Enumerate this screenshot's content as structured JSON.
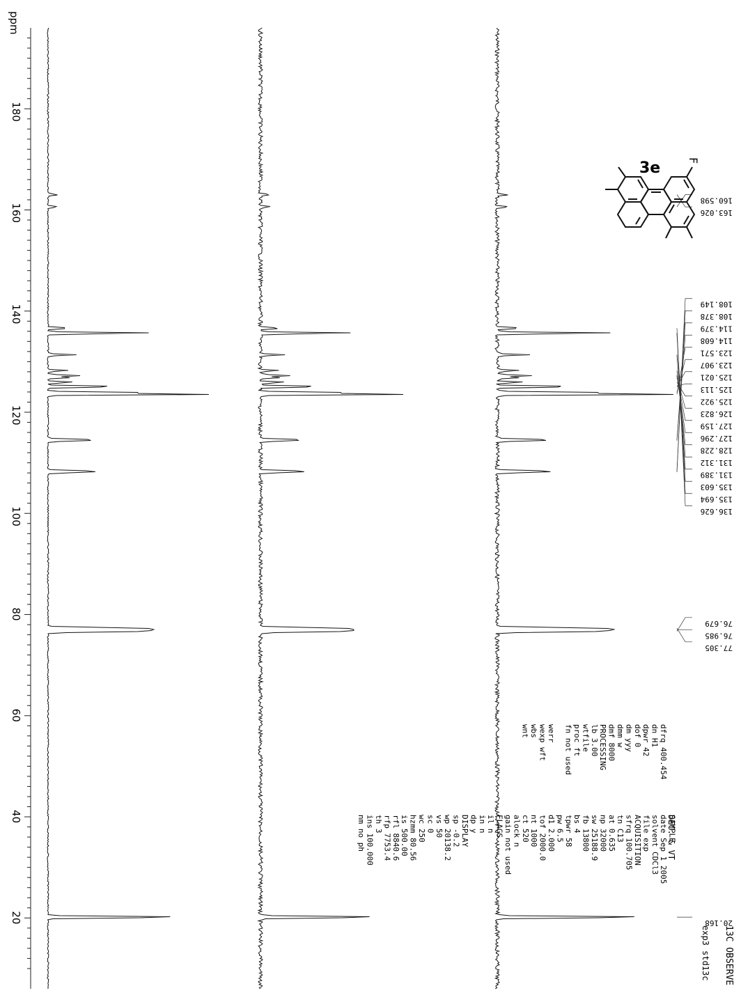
{
  "chart_data": {
    "type": "line",
    "title": "13C OBSERVE",
    "xlabel": "ppm",
    "ylabel": "",
    "xlim": [
      196,
      6
    ],
    "ticks": [
      "20",
      "40",
      "60",
      "80",
      "100",
      "120",
      "140",
      "160",
      "180"
    ],
    "tick_values": [
      20,
      40,
      60,
      80,
      100,
      120,
      140,
      160,
      180
    ],
    "grid": false,
    "panels": [
      {
        "name": "",
        "scale": 1.0
      },
      {
        "name": "",
        "scale": 3.2
      },
      {
        "name": "",
        "scale": 0.9
      }
    ],
    "peaks": [
      {
        "ppm": 20.168,
        "height": 1.0,
        "width": 0.18
      },
      {
        "ppm": 76.679,
        "height": 0.6,
        "width": 0.2
      },
      {
        "ppm": 76.985,
        "height": 0.62,
        "width": 0.2
      },
      {
        "ppm": 77.305,
        "height": 0.6,
        "width": 0.2
      },
      {
        "ppm": 108.149,
        "height": 0.28,
        "width": 0.15
      },
      {
        "ppm": 108.378,
        "height": 0.28,
        "width": 0.15
      },
      {
        "ppm": 114.379,
        "height": 0.25,
        "width": 0.15
      },
      {
        "ppm": 114.608,
        "height": 0.25,
        "width": 0.15
      },
      {
        "ppm": 123.571,
        "height": 1.25,
        "width": 0.15
      },
      {
        "ppm": 123.907,
        "height": 0.6,
        "width": 0.15
      },
      {
        "ppm": 125.021,
        "height": 0.3,
        "width": 0.15
      },
      {
        "ppm": 125.113,
        "height": 0.3,
        "width": 0.15
      },
      {
        "ppm": 125.922,
        "height": 0.2,
        "width": 0.15
      },
      {
        "ppm": 126.823,
        "height": 0.14,
        "width": 0.15
      },
      {
        "ppm": 127.159,
        "height": 0.14,
        "width": 0.15
      },
      {
        "ppm": 127.296,
        "height": 0.12,
        "width": 0.15
      },
      {
        "ppm": 128.228,
        "height": 0.14,
        "width": 0.15
      },
      {
        "ppm": 131.312,
        "height": 0.1,
        "width": 0.15
      },
      {
        "ppm": 131.389,
        "height": 0.1,
        "width": 0.15
      },
      {
        "ppm": 135.603,
        "height": 0.4,
        "width": 0.15
      },
      {
        "ppm": 135.694,
        "height": 0.4,
        "width": 0.15
      },
      {
        "ppm": 136.626,
        "height": 0.18,
        "width": 0.15
      },
      {
        "ppm": 160.598,
        "height": 0.08,
        "width": 0.15
      },
      {
        "ppm": 163.026,
        "height": 0.08,
        "width": 0.15
      }
    ],
    "peak_labels": [
      "20.168",
      "76.679",
      "76.985",
      "77.305",
      "108.149",
      "108.378",
      "114.379",
      "114.608",
      "123.571",
      "123.907",
      "125.021",
      "125.113",
      "125.922",
      "126.823",
      "127.159",
      "127.296",
      "128.228",
      "131.312",
      "131.389",
      "135.603",
      "135.694",
      "136.626",
      "160.598",
      "163.026"
    ]
  },
  "compound_label": "3e",
  "substituent_label": "F",
  "params": {
    "header": "exp3   std13c",
    "subheader": "DEC. & VT",
    "col1": [
      "",
      "SAMPLE",
      "date   Sep  1 2005",
      "solvent     CDCl3",
      "file          exp",
      "ACQUISITION",
      "sfrq      100.705",
      "tn             C13",
      "at           0.635",
      "np           32000",
      "sw         25188.9",
      "fb           13800",
      "bs               4",
      "tpwr            58",
      "pw             6.5",
      "d1           2.000",
      "tof         2000.0",
      "nt            1000",
      "ct             520",
      "alock            n",
      "gain      not used",
      "FLAGS",
      "il               n",
      "in               n",
      "dp               y",
      "DISPLAY",
      "sp            -0.2",
      "wp         20138.2",
      "vs              50",
      "sc               0",
      "wc             250",
      "hzmm         80.56",
      "is          500.00",
      "rfl         8840.6",
      "rfp         7753.4",
      "th               3",
      "ins        100.000",
      "nm      no     ph"
    ],
    "col2": [
      "dfrq      400.454",
      "dn              H1",
      "dpwr            42",
      "dof              0",
      "dm             yyy",
      "dmm              w",
      "dmf           8000",
      "PROCESSING",
      "lb            3.00",
      "wtfile",
      "proc            ft",
      "fn      not used",
      "",
      "werr",
      "wexp             wft",
      "wbs",
      "wnt"
    ]
  }
}
